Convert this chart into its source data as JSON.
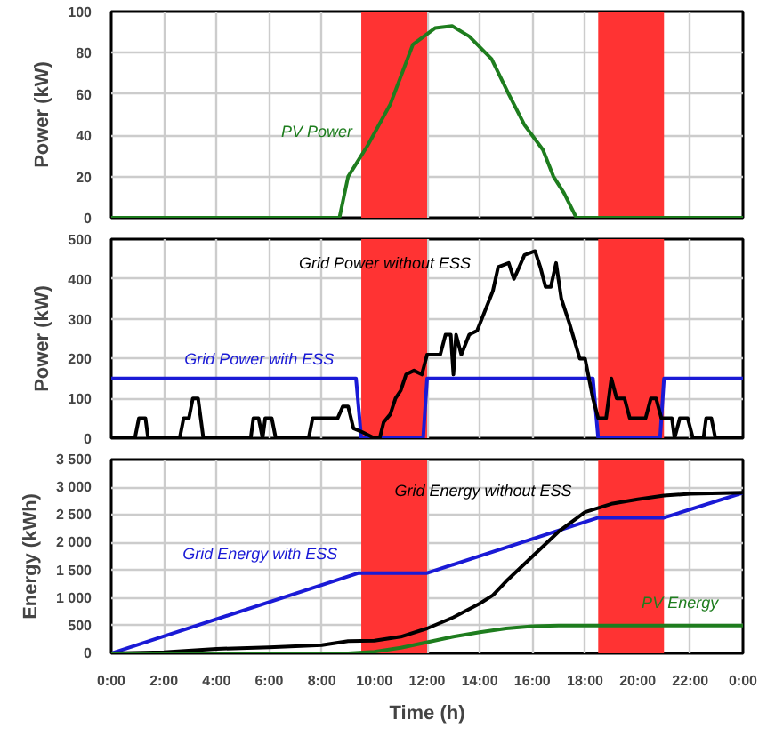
{
  "chart_data": [
    {
      "type": "line",
      "ylabel": "Power (kW)",
      "xlim": [
        0,
        24
      ],
      "xticks": [
        0,
        2,
        4,
        6,
        8,
        10,
        12,
        14,
        16,
        18,
        20,
        22,
        24
      ],
      "ylim": [
        0,
        100
      ],
      "yticks": [
        0,
        20,
        40,
        60,
        80,
        100
      ],
      "grid": true,
      "tick_labels": "y",
      "bands": [
        {
          "axis": "x",
          "from": 9.5,
          "to": 12,
          "color": "#ff3333"
        },
        {
          "axis": "x",
          "from": 18.5,
          "to": 21,
          "color": "#ff3333"
        }
      ],
      "series": [
        {
          "name": "PV Power",
          "color": "#1e7d1e",
          "x": [
            0,
            8.67,
            9.0,
            9.74,
            10.6,
            11.46,
            12.3,
            12.95,
            13.6,
            14.45,
            15.1,
            15.7,
            16.4,
            16.8,
            17.2,
            17.67,
            24
          ],
          "values": [
            0,
            0,
            20,
            35,
            55,
            84,
            92,
            93,
            88,
            77,
            60,
            45,
            33,
            20,
            12,
            0,
            0
          ]
        }
      ]
    },
    {
      "type": "line",
      "ylabel": "Power (kW)",
      "xlim": [
        0,
        24
      ],
      "xticks": [
        0,
        2,
        4,
        6,
        8,
        10,
        12,
        14,
        16,
        18,
        20,
        22,
        24
      ],
      "ylim": [
        0,
        500
      ],
      "yticks": [
        0,
        100,
        200,
        300,
        400,
        500
      ],
      "grid": true,
      "tick_labels": "y",
      "bands": [
        {
          "axis": "x",
          "from": 9.5,
          "to": 12,
          "color": "#ff3333"
        },
        {
          "axis": "x",
          "from": 18.5,
          "to": 21,
          "color": "#ff3333"
        }
      ],
      "series": [
        {
          "name": "Grid Power with ESS",
          "color": "#1a1ad6",
          "x": [
            0,
            9.3,
            9.5,
            11.85,
            12.0,
            18.3,
            18.5,
            20.85,
            21.0,
            24
          ],
          "values": [
            150,
            150,
            0,
            0,
            150,
            150,
            0,
            0,
            150,
            150
          ]
        },
        {
          "name": "Grid Power without ESS",
          "color": "#000000",
          "x": [
            0,
            0.9,
            1.05,
            1.3,
            1.4,
            2.6,
            2.75,
            2.95,
            3.1,
            3.3,
            3.5,
            5.3,
            5.4,
            5.6,
            5.75,
            5.85,
            6.1,
            6.25,
            7.5,
            7.65,
            8.6,
            8.8,
            9.0,
            9.2,
            9.55,
            10.0,
            10.2,
            10.35,
            10.6,
            10.8,
            11.0,
            11.2,
            11.5,
            11.8,
            12.0,
            12.5,
            12.7,
            12.9,
            13.0,
            13.1,
            13.3,
            13.6,
            13.9,
            14.2,
            14.5,
            14.7,
            15.1,
            15.3,
            15.5,
            15.7,
            16.1,
            16.3,
            16.5,
            16.7,
            16.9,
            17.1,
            17.4,
            17.8,
            18.0,
            18.3,
            18.5,
            18.8,
            19.0,
            19.2,
            19.5,
            19.7,
            20.3,
            20.5,
            20.7,
            20.9,
            21.3,
            21.4,
            21.6,
            21.9,
            22.1,
            22.5,
            22.6,
            22.8,
            22.95,
            24
          ],
          "values": [
            0,
            0,
            50,
            50,
            0,
            0,
            50,
            50,
            100,
            100,
            0,
            0,
            50,
            50,
            0,
            50,
            50,
            0,
            0,
            50,
            50,
            80,
            80,
            25,
            15,
            0,
            0,
            40,
            60,
            100,
            120,
            160,
            170,
            160,
            210,
            210,
            260,
            260,
            160,
            260,
            210,
            260,
            270,
            320,
            370,
            430,
            440,
            400,
            430,
            460,
            470,
            430,
            380,
            380,
            440,
            350,
            290,
            200,
            200,
            100,
            50,
            50,
            150,
            100,
            100,
            50,
            50,
            100,
            100,
            50,
            50,
            0,
            50,
            50,
            0,
            0,
            50,
            50,
            0,
            0
          ]
        }
      ]
    },
    {
      "type": "line",
      "ylabel": "Energy (kWh)",
      "xlabel": "Time (h)",
      "xlim": [
        0,
        24
      ],
      "xticks": [
        {
          "value": 0,
          "label": "0:00"
        },
        {
          "value": 2,
          "label": "2:00"
        },
        {
          "value": 4,
          "label": "4:00"
        },
        {
          "value": 6,
          "label": "6:00"
        },
        {
          "value": 8,
          "label": "8:00"
        },
        {
          "value": 10,
          "label": "10:00"
        },
        {
          "value": 12,
          "label": "12:00"
        },
        {
          "value": 14,
          "label": "14:00"
        },
        {
          "value": 16,
          "label": "16:00"
        },
        {
          "value": 18,
          "label": "18:00"
        },
        {
          "value": 20,
          "label": "20:00"
        },
        {
          "value": 22,
          "label": "22:00"
        },
        {
          "value": 24,
          "label": "0:00"
        }
      ],
      "ylim": [
        0,
        3500
      ],
      "yticks": [
        0,
        500,
        {
          "value": 1000,
          "label": "1 000"
        },
        {
          "value": 1500,
          "label": "1 500"
        },
        {
          "value": 2000,
          "label": "2 000"
        },
        {
          "value": 2500,
          "label": "2 500"
        },
        {
          "value": 3000,
          "label": "3 000"
        },
        {
          "value": 3500,
          "label": "3 500"
        }
      ],
      "grid": true,
      "bands": [
        {
          "axis": "x",
          "from": 9.5,
          "to": 12,
          "color": "#ff3333"
        },
        {
          "axis": "x",
          "from": 18.5,
          "to": 21,
          "color": "#ff3333"
        }
      ],
      "series": [
        {
          "name": "Grid Energy with ESS",
          "color": "#1a1ad6",
          "x": [
            0,
            9.4,
            12,
            18.5,
            21,
            24
          ],
          "values": [
            0,
            1450,
            1450,
            2450,
            2450,
            2900
          ]
        },
        {
          "name": "Grid Energy without ESS",
          "color": "#000000",
          "x": [
            0,
            2,
            4,
            6,
            8,
            9,
            10,
            11,
            12,
            13,
            14,
            14.5,
            15,
            16,
            17,
            18,
            19,
            20,
            21,
            22,
            24
          ],
          "values": [
            0,
            20,
            80,
            110,
            150,
            220,
            230,
            300,
            450,
            650,
            900,
            1050,
            1300,
            1750,
            2200,
            2550,
            2700,
            2780,
            2850,
            2880,
            2900
          ]
        },
        {
          "name": "PV Energy",
          "color": "#1e7d1e",
          "x": [
            0,
            9,
            10,
            11,
            12,
            13,
            14,
            15,
            16,
            17,
            24
          ],
          "values": [
            0,
            0,
            30,
            100,
            200,
            300,
            380,
            450,
            490,
            500,
            500
          ]
        }
      ]
    }
  ]
}
